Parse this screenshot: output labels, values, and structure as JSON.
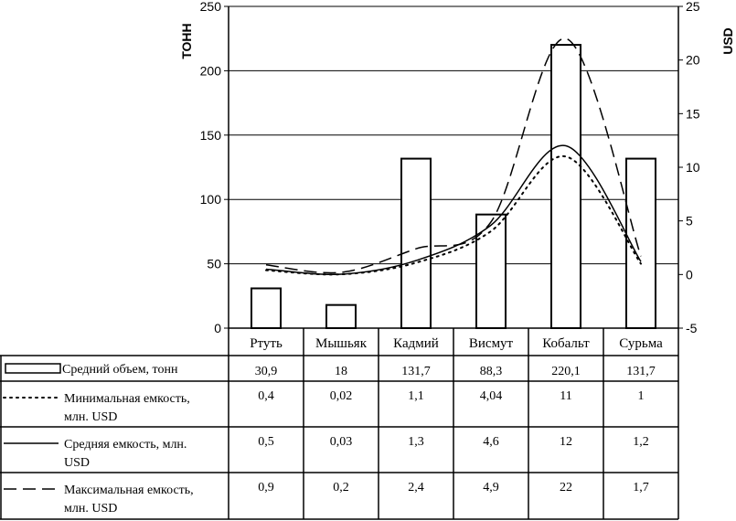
{
  "chart_data": {
    "type": "bar",
    "categories": [
      "Ртуть",
      "Мышьяк",
      "Кадмий",
      "Висмут",
      "Кобальт",
      "Сурьма"
    ],
    "left_axis": {
      "label": "ТОНН",
      "ylim": [
        0,
        250
      ],
      "ticks": [
        "0",
        "50",
        "100",
        "150",
        "200",
        "250"
      ]
    },
    "right_axis": {
      "label": "USD",
      "ylim": [
        -5,
        25
      ],
      "ticks": [
        "-5",
        "0",
        "5",
        "10",
        "15",
        "20",
        "25"
      ]
    },
    "gridlines": true,
    "series": [
      {
        "name": "Средний объем, тонн",
        "kind": "bar",
        "axis": "left",
        "values": [
          30.9,
          18,
          131.7,
          88.3,
          220.1,
          131.7
        ],
        "labels": [
          "30,9",
          "18",
          "131,7",
          "88,3",
          "220,1",
          "131,7"
        ]
      },
      {
        "name": "Минимальная емкость, млн. USD",
        "kind": "line",
        "style": "dotted",
        "axis": "right",
        "values": [
          0.4,
          0.02,
          1.1,
          4.04,
          11,
          1
        ],
        "labels": [
          "0,4",
          "0,02",
          "1,1",
          "4,04",
          "11",
          "1"
        ]
      },
      {
        "name": "Средняя емкость, млн. USD",
        "kind": "line",
        "style": "solid",
        "axis": "right",
        "values": [
          0.5,
          0.03,
          1.3,
          4.6,
          12,
          1.2
        ],
        "labels": [
          "0,5",
          "0,03",
          "1,3",
          "4,6",
          "12",
          "1,2"
        ]
      },
      {
        "name": "Максимальная емкость, млн. USD",
        "kind": "line",
        "style": "dashed",
        "axis": "right",
        "values": [
          0.9,
          0.2,
          2.4,
          4.9,
          22,
          1.7
        ],
        "labels": [
          "0,9",
          "0,2",
          "2,4",
          "4,9",
          "22",
          "1,7"
        ]
      }
    ]
  }
}
